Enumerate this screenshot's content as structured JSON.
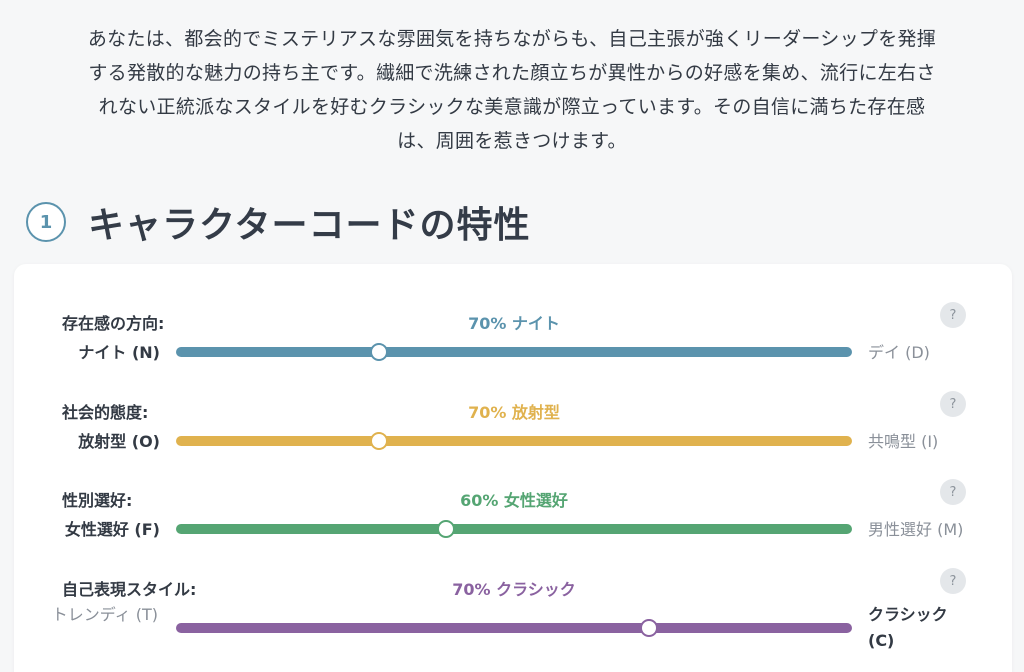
{
  "intro_lines": [
    "あなたは、都会的でミステリアスな雰囲気を持ちながらも、自己主張が強くリーダーシップを発揮",
    "する発散的な魅力の持ち主です。繊細で洗練された顔立ちが異性からの好感を集め、流行に左右さ",
    "れない正統派なスタイルを好むクラシックな美意識が際立っています。その自信に満ちた存在感",
    "は、周囲を惹きつけます。"
  ],
  "section": {
    "number": "1",
    "title": "キャラクターコードの特性"
  },
  "help_label": "?",
  "traits": [
    {
      "label": "存在感の方向:",
      "value": "70% ナイト",
      "left_pole": "ナイト (N)",
      "right_pole": "デイ (D)",
      "color": "#5b93ad",
      "level": 0.3,
      "strong_side": "left"
    },
    {
      "label": "社会的態度:",
      "value": "70% 放射型",
      "left_pole": "放射型 (O)",
      "right_pole": "共鳴型 (I)",
      "color": "#e0b24e",
      "level": 0.3,
      "strong_side": "left"
    },
    {
      "label": "性別選好:",
      "value": "60% 女性選好",
      "left_pole": "女性選好 (F)",
      "right_pole": "男性選好 (M)",
      "color": "#55a573",
      "level": 0.4,
      "strong_side": "left"
    },
    {
      "label": "自己表現スタイル:",
      "value": "70% クラシック",
      "left_pole": "トレンディ (T)",
      "right_pole": "クラシック (C)",
      "color": "#8a62a0",
      "level": 0.7,
      "strong_side": "right"
    }
  ]
}
